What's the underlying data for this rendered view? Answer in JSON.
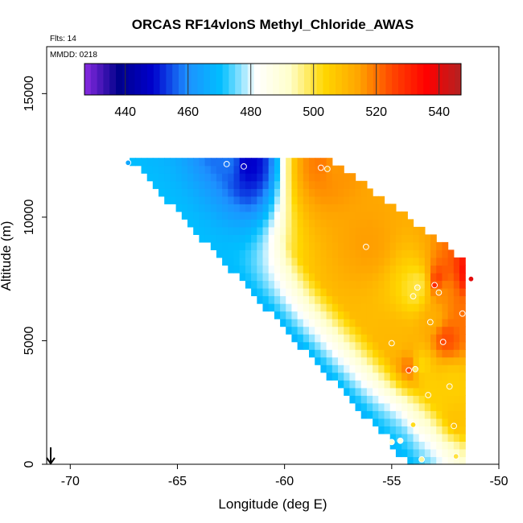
{
  "chart_data": {
    "type": "heatmap",
    "title": "ORCAS RF14vlonS Methyl_Chloride_AWAS",
    "annotations": {
      "flights": "Flts: 14",
      "date": "MMDD: 0218"
    },
    "xlabel": "Longitude (deg E)",
    "ylabel": "Altitude (m)",
    "xlim": [
      -71.1,
      -50
    ],
    "ylim": [
      0,
      16900
    ],
    "x_ticks": [
      -70,
      -65,
      -60,
      -55,
      -50
    ],
    "x_tick_labels": [
      "-70",
      "-65",
      "-60",
      "-55",
      "-50"
    ],
    "y_ticks": [
      0,
      5000,
      10000,
      15000
    ],
    "y_tick_labels": [
      "0",
      "5000",
      "10000",
      "15000"
    ],
    "colorbar": {
      "position": "top inside",
      "range": [
        427,
        547
      ],
      "ticks": [
        440,
        460,
        480,
        500,
        520,
        540
      ],
      "tick_labels": [
        "440",
        "460",
        "480",
        "500",
        "520",
        "540"
      ],
      "palette": [
        "#8a2be2",
        "#00008b",
        "#0000cd",
        "#1e90ff",
        "#00bfff",
        "#ffffff",
        "#ffffcc",
        "#ffd700",
        "#ffa500",
        "#ff4500",
        "#ff0000",
        "#b22222"
      ]
    },
    "samples": [
      {
        "lon": -67.3,
        "alt": 12200,
        "value": 465
      },
      {
        "lon": -62.7,
        "alt": 12150,
        "value": 458
      },
      {
        "lon": -61.9,
        "alt": 12050,
        "value": 448
      },
      {
        "lon": -58.3,
        "alt": 12000,
        "value": 520
      },
      {
        "lon": -58.0,
        "alt": 11950,
        "value": 515
      },
      {
        "lon": -56.2,
        "alt": 8800,
        "value": 515
      },
      {
        "lon": -53.8,
        "alt": 7150,
        "value": 498
      },
      {
        "lon": -53.0,
        "alt": 7250,
        "value": 530
      },
      {
        "lon": -52.8,
        "alt": 6950,
        "value": 515
      },
      {
        "lon": -51.3,
        "alt": 7500,
        "value": 540
      },
      {
        "lon": -54.0,
        "alt": 6800,
        "value": 500
      },
      {
        "lon": -51.7,
        "alt": 6100,
        "value": 520
      },
      {
        "lon": -53.2,
        "alt": 5750,
        "value": 512
      },
      {
        "lon": -52.6,
        "alt": 4950,
        "value": 525
      },
      {
        "lon": -55.0,
        "alt": 4900,
        "value": 510
      },
      {
        "lon": -53.9,
        "alt": 3850,
        "value": 498
      },
      {
        "lon": -54.2,
        "alt": 3800,
        "value": 525
      },
      {
        "lon": -53.3,
        "alt": 2800,
        "value": 505
      },
      {
        "lon": -54.0,
        "alt": 1600,
        "value": 502
      },
      {
        "lon": -52.1,
        "alt": 1550,
        "value": 508
      },
      {
        "lon": -54.6,
        "alt": 950,
        "value": 488
      },
      {
        "lon": -55.0,
        "alt": 900,
        "value": 490
      },
      {
        "lon": -52.0,
        "alt": 320,
        "value": 500
      },
      {
        "lon": -53.6,
        "alt": 200,
        "value": 495
      },
      {
        "lon": -52.3,
        "alt": 3150,
        "value": 505
      }
    ]
  }
}
